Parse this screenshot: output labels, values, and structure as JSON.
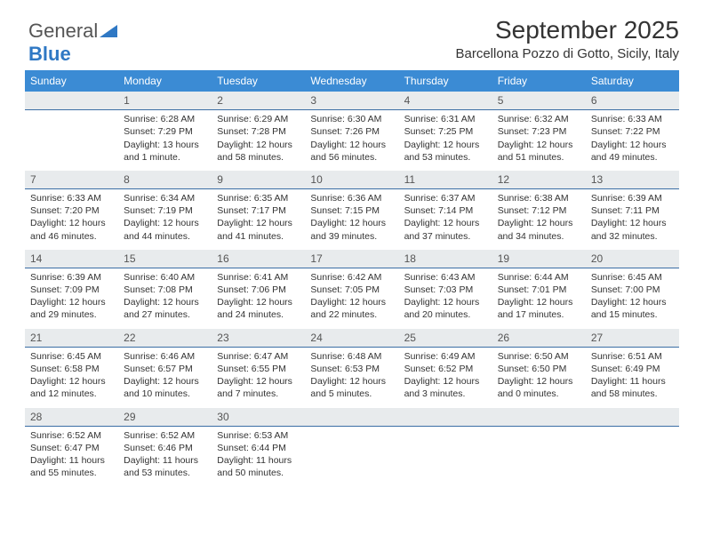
{
  "brand": {
    "part1": "General",
    "part2": "Blue",
    "logo_color": "#2f78c4"
  },
  "title": "September 2025",
  "location": "Barcellona Pozzo di Gotto, Sicily, Italy",
  "colors": {
    "header_bg": "#3b8bd4",
    "header_text": "#ffffff",
    "daynum_bg": "#e8ebed",
    "daynum_border": "#3b6ea5",
    "body_text": "#333333",
    "page_bg": "#ffffff"
  },
  "weekdays": [
    "Sunday",
    "Monday",
    "Tuesday",
    "Wednesday",
    "Thursday",
    "Friday",
    "Saturday"
  ],
  "weeks": [
    [
      {
        "day": "",
        "lines": []
      },
      {
        "day": "1",
        "lines": [
          "Sunrise: 6:28 AM",
          "Sunset: 7:29 PM",
          "Daylight: 13 hours",
          "and 1 minute."
        ]
      },
      {
        "day": "2",
        "lines": [
          "Sunrise: 6:29 AM",
          "Sunset: 7:28 PM",
          "Daylight: 12 hours",
          "and 58 minutes."
        ]
      },
      {
        "day": "3",
        "lines": [
          "Sunrise: 6:30 AM",
          "Sunset: 7:26 PM",
          "Daylight: 12 hours",
          "and 56 minutes."
        ]
      },
      {
        "day": "4",
        "lines": [
          "Sunrise: 6:31 AM",
          "Sunset: 7:25 PM",
          "Daylight: 12 hours",
          "and 53 minutes."
        ]
      },
      {
        "day": "5",
        "lines": [
          "Sunrise: 6:32 AM",
          "Sunset: 7:23 PM",
          "Daylight: 12 hours",
          "and 51 minutes."
        ]
      },
      {
        "day": "6",
        "lines": [
          "Sunrise: 6:33 AM",
          "Sunset: 7:22 PM",
          "Daylight: 12 hours",
          "and 49 minutes."
        ]
      }
    ],
    [
      {
        "day": "7",
        "lines": [
          "Sunrise: 6:33 AM",
          "Sunset: 7:20 PM",
          "Daylight: 12 hours",
          "and 46 minutes."
        ]
      },
      {
        "day": "8",
        "lines": [
          "Sunrise: 6:34 AM",
          "Sunset: 7:19 PM",
          "Daylight: 12 hours",
          "and 44 minutes."
        ]
      },
      {
        "day": "9",
        "lines": [
          "Sunrise: 6:35 AM",
          "Sunset: 7:17 PM",
          "Daylight: 12 hours",
          "and 41 minutes."
        ]
      },
      {
        "day": "10",
        "lines": [
          "Sunrise: 6:36 AM",
          "Sunset: 7:15 PM",
          "Daylight: 12 hours",
          "and 39 minutes."
        ]
      },
      {
        "day": "11",
        "lines": [
          "Sunrise: 6:37 AM",
          "Sunset: 7:14 PM",
          "Daylight: 12 hours",
          "and 37 minutes."
        ]
      },
      {
        "day": "12",
        "lines": [
          "Sunrise: 6:38 AM",
          "Sunset: 7:12 PM",
          "Daylight: 12 hours",
          "and 34 minutes."
        ]
      },
      {
        "day": "13",
        "lines": [
          "Sunrise: 6:39 AM",
          "Sunset: 7:11 PM",
          "Daylight: 12 hours",
          "and 32 minutes."
        ]
      }
    ],
    [
      {
        "day": "14",
        "lines": [
          "Sunrise: 6:39 AM",
          "Sunset: 7:09 PM",
          "Daylight: 12 hours",
          "and 29 minutes."
        ]
      },
      {
        "day": "15",
        "lines": [
          "Sunrise: 6:40 AM",
          "Sunset: 7:08 PM",
          "Daylight: 12 hours",
          "and 27 minutes."
        ]
      },
      {
        "day": "16",
        "lines": [
          "Sunrise: 6:41 AM",
          "Sunset: 7:06 PM",
          "Daylight: 12 hours",
          "and 24 minutes."
        ]
      },
      {
        "day": "17",
        "lines": [
          "Sunrise: 6:42 AM",
          "Sunset: 7:05 PM",
          "Daylight: 12 hours",
          "and 22 minutes."
        ]
      },
      {
        "day": "18",
        "lines": [
          "Sunrise: 6:43 AM",
          "Sunset: 7:03 PM",
          "Daylight: 12 hours",
          "and 20 minutes."
        ]
      },
      {
        "day": "19",
        "lines": [
          "Sunrise: 6:44 AM",
          "Sunset: 7:01 PM",
          "Daylight: 12 hours",
          "and 17 minutes."
        ]
      },
      {
        "day": "20",
        "lines": [
          "Sunrise: 6:45 AM",
          "Sunset: 7:00 PM",
          "Daylight: 12 hours",
          "and 15 minutes."
        ]
      }
    ],
    [
      {
        "day": "21",
        "lines": [
          "Sunrise: 6:45 AM",
          "Sunset: 6:58 PM",
          "Daylight: 12 hours",
          "and 12 minutes."
        ]
      },
      {
        "day": "22",
        "lines": [
          "Sunrise: 6:46 AM",
          "Sunset: 6:57 PM",
          "Daylight: 12 hours",
          "and 10 minutes."
        ]
      },
      {
        "day": "23",
        "lines": [
          "Sunrise: 6:47 AM",
          "Sunset: 6:55 PM",
          "Daylight: 12 hours",
          "and 7 minutes."
        ]
      },
      {
        "day": "24",
        "lines": [
          "Sunrise: 6:48 AM",
          "Sunset: 6:53 PM",
          "Daylight: 12 hours",
          "and 5 minutes."
        ]
      },
      {
        "day": "25",
        "lines": [
          "Sunrise: 6:49 AM",
          "Sunset: 6:52 PM",
          "Daylight: 12 hours",
          "and 3 minutes."
        ]
      },
      {
        "day": "26",
        "lines": [
          "Sunrise: 6:50 AM",
          "Sunset: 6:50 PM",
          "Daylight: 12 hours",
          "and 0 minutes."
        ]
      },
      {
        "day": "27",
        "lines": [
          "Sunrise: 6:51 AM",
          "Sunset: 6:49 PM",
          "Daylight: 11 hours",
          "and 58 minutes."
        ]
      }
    ],
    [
      {
        "day": "28",
        "lines": [
          "Sunrise: 6:52 AM",
          "Sunset: 6:47 PM",
          "Daylight: 11 hours",
          "and 55 minutes."
        ]
      },
      {
        "day": "29",
        "lines": [
          "Sunrise: 6:52 AM",
          "Sunset: 6:46 PM",
          "Daylight: 11 hours",
          "and 53 minutes."
        ]
      },
      {
        "day": "30",
        "lines": [
          "Sunrise: 6:53 AM",
          "Sunset: 6:44 PM",
          "Daylight: 11 hours",
          "and 50 minutes."
        ]
      },
      {
        "day": "",
        "lines": []
      },
      {
        "day": "",
        "lines": []
      },
      {
        "day": "",
        "lines": []
      },
      {
        "day": "",
        "lines": []
      }
    ]
  ]
}
